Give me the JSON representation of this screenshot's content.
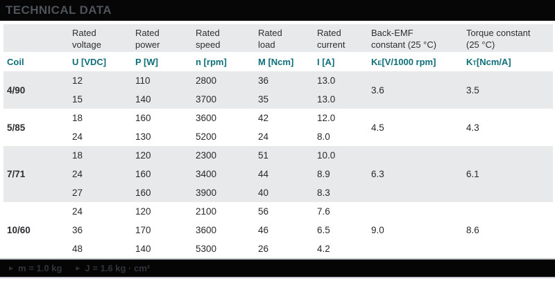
{
  "title": "TECHNICAL DATA",
  "colors": {
    "accent_teal": "#0e6f79",
    "stripe_gray": "#e8e9ea",
    "title_bar": "#060606",
    "title_text": "#4e545a",
    "body_text": "#28292b"
  },
  "table": {
    "column_headers": [
      {
        "line1": "Rated",
        "line2": "voltage"
      },
      {
        "line1": "Rated",
        "line2": "power"
      },
      {
        "line1": "Rated",
        "line2": "speed"
      },
      {
        "line1": "Rated",
        "line2": "load"
      },
      {
        "line1": "Rated",
        "line2": "current"
      },
      {
        "line1": "Back-EMF",
        "line2": "constant (25 °C)"
      },
      {
        "line1": "Torque constant",
        "line2": "(25 °C)"
      }
    ],
    "unit_row": {
      "coil": "Coil",
      "units": [
        "U [VDC]",
        "P [W]",
        "n [rpm]",
        "M [Ncm]",
        "I [A]"
      ],
      "ke": {
        "base": "K",
        "sub": "E",
        "rest": " [V/1000 rpm]"
      },
      "kt": {
        "base": "K",
        "sub": "T",
        "rest": " [Ncm/A]"
      }
    },
    "groups": [
      {
        "coil": "4/90",
        "ke": "3.6",
        "kt": "3.5",
        "rows": [
          [
            "12",
            "110",
            "2800",
            "36",
            "13.0"
          ],
          [
            "15",
            "140",
            "3700",
            "35",
            "13.0"
          ]
        ]
      },
      {
        "coil": "5/85",
        "ke": "4.5",
        "kt": "4.3",
        "rows": [
          [
            "18",
            "160",
            "3600",
            "42",
            "12.0"
          ],
          [
            "24",
            "130",
            "5200",
            "24",
            "8.0"
          ]
        ]
      },
      {
        "coil": "7/71",
        "ke": "6.3",
        "kt": "6.1",
        "rows": [
          [
            "18",
            "120",
            "2300",
            "51",
            "10.0"
          ],
          [
            "24",
            "160",
            "3400",
            "44",
            "8.9"
          ],
          [
            "27",
            "160",
            "3900",
            "40",
            "8.3"
          ]
        ]
      },
      {
        "coil": "10/60",
        "ke": "9.0",
        "kt": "8.6",
        "rows": [
          [
            "24",
            "120",
            "2100",
            "56",
            "7.6"
          ],
          [
            "36",
            "170",
            "3600",
            "46",
            "6.5"
          ],
          [
            "48",
            "140",
            "5300",
            "26",
            "4.2"
          ]
        ]
      }
    ]
  },
  "footer": {
    "bullet_icon": "▶",
    "items": [
      "m = 1.0 kg",
      "J = 1.6 kg · cm²"
    ]
  }
}
